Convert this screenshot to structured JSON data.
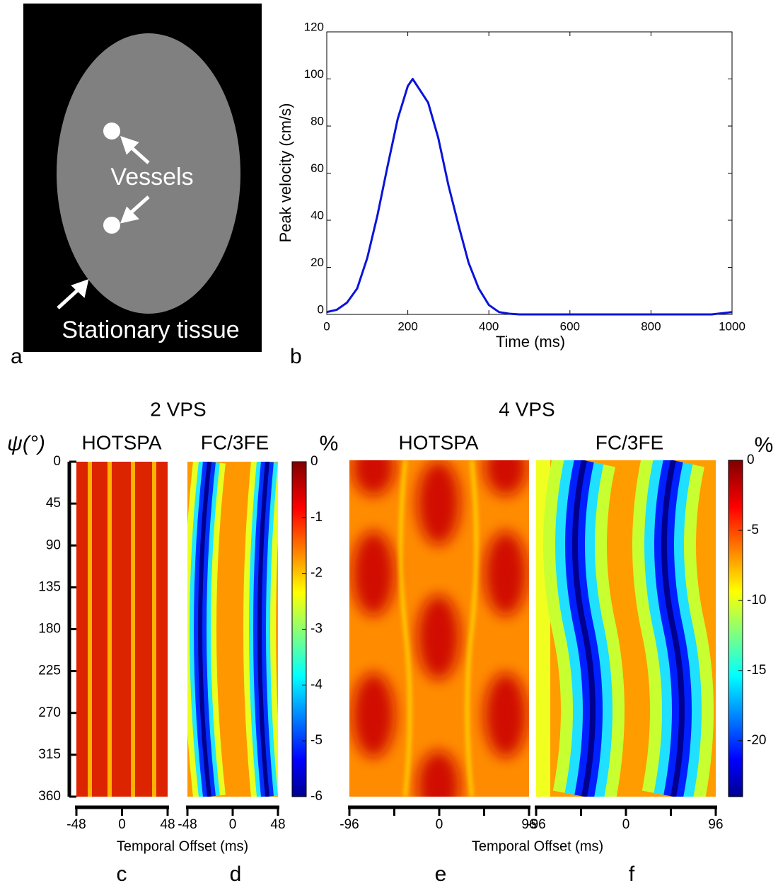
{
  "panel_a": {
    "letter": "a",
    "labels": [
      "Vessels",
      "Stationary tissue"
    ]
  },
  "chart_data": {
    "type": "line",
    "panel_letter": "b",
    "xlabel": "Time (ms)",
    "ylabel": "Peak velocity (cm/s)",
    "x": [
      0,
      25,
      50,
      75,
      100,
      125,
      150,
      175,
      200,
      212,
      250,
      275,
      300,
      325,
      350,
      375,
      400,
      425,
      450,
      475,
      500,
      600,
      700,
      800,
      900,
      950,
      1000
    ],
    "series": [
      {
        "color": "#0a14d8",
        "values": [
          1,
          2,
          5,
          11,
          24,
          42,
          63,
          83,
          97,
          100,
          90,
          75,
          55,
          38,
          22,
          11,
          4,
          1,
          0.3,
          0,
          0,
          0,
          0,
          0,
          0,
          0,
          1
        ]
      }
    ],
    "xlim": [
      0,
      1000
    ],
    "xticks": [
      0,
      200,
      400,
      600,
      800,
      1000
    ],
    "ylim": [
      0,
      120
    ],
    "yticks": [
      0,
      20,
      40,
      60,
      80,
      100,
      120
    ]
  },
  "heatmaps": {
    "groups": [
      "2 VPS",
      "4 VPS"
    ],
    "y_label": "ψ(°)",
    "ylim": [
      0,
      360
    ],
    "yticks": [
      0,
      45,
      90,
      135,
      180,
      225,
      270,
      315,
      360
    ],
    "panels": [
      {
        "title": "HOTSPA",
        "letter": "c",
        "xlim": [
          -48,
          48
        ],
        "xticks": [
          -48,
          0,
          48
        ]
      },
      {
        "title": "FC/3FE",
        "letter": "d",
        "xlim": [
          -48,
          48
        ],
        "xticks": [
          -48,
          0,
          48
        ]
      },
      {
        "title": "HOTSPA",
        "letter": "e",
        "xlim": [
          -96,
          96
        ],
        "xticks": [
          -96,
          0,
          96
        ],
        "minor_xticks": [
          -48,
          48
        ]
      },
      {
        "title": "FC/3FE",
        "letter": "f",
        "xlim": [
          -96,
          96
        ],
        "xticks": [
          -96,
          0,
          96
        ],
        "minor_xticks": [
          -48,
          48
        ]
      }
    ],
    "colorbars": [
      {
        "label": "%",
        "clim": [
          -6,
          0
        ],
        "ticks": [
          0,
          -1,
          -2,
          -3,
          -4,
          -5,
          -6
        ]
      },
      {
        "label": "%",
        "clim": [
          -24,
          0
        ],
        "ticks": [
          0,
          -5,
          -10,
          -15,
          -20
        ]
      }
    ],
    "x_labels": [
      "Temporal Offset (ms)",
      "Temporal Offset (ms)"
    ]
  }
}
